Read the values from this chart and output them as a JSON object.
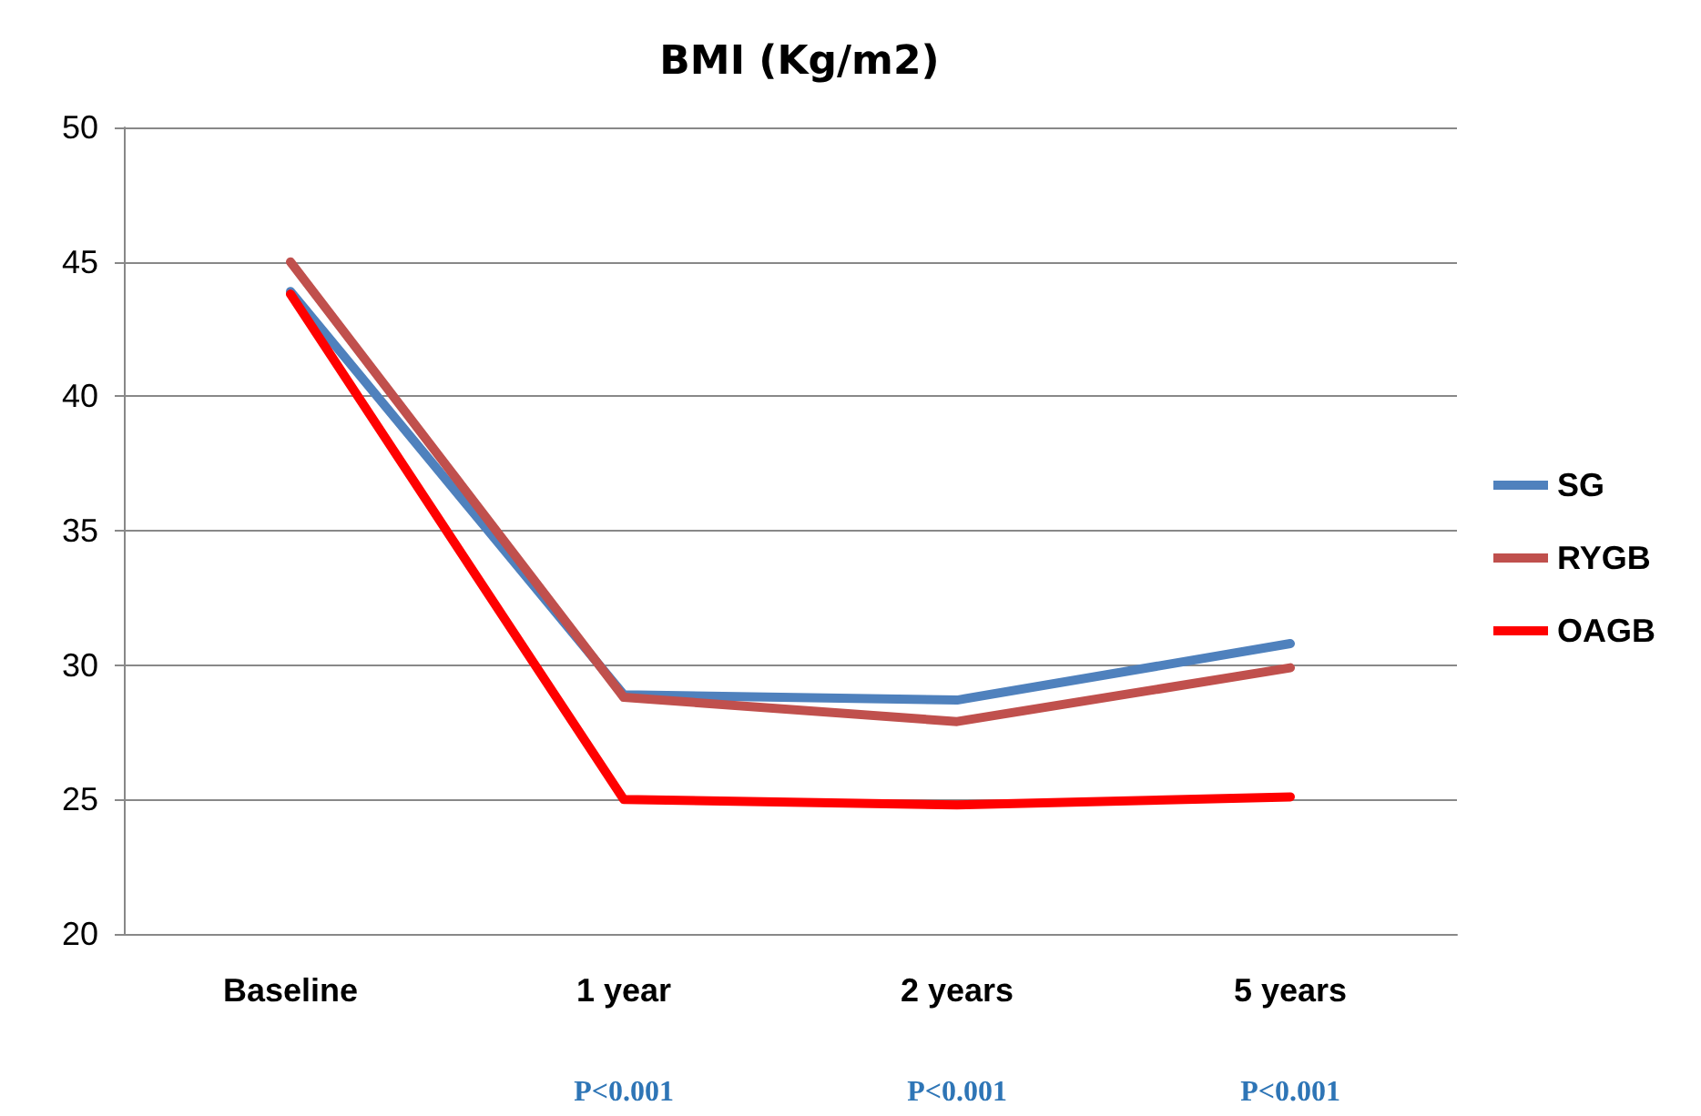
{
  "chart_data": {
    "type": "line",
    "title": "BMI (Kg/m2)",
    "categories": [
      "Baseline",
      "1 year",
      "2 years",
      "5 years"
    ],
    "series": [
      {
        "name": "SG",
        "color": "#4f81bd",
        "values": [
          43.9,
          28.9,
          28.7,
          30.8
        ]
      },
      {
        "name": "RYGB",
        "color": "#c0504d",
        "values": [
          45.0,
          28.8,
          27.9,
          29.9
        ]
      },
      {
        "name": "OAGB",
        "color": "#ff0000",
        "values": [
          43.8,
          25.0,
          24.8,
          25.1
        ]
      }
    ],
    "ylim": [
      20,
      50
    ],
    "yticks": [
      20,
      25,
      30,
      35,
      40,
      45,
      50
    ],
    "grid": "y",
    "legend": "right",
    "marker": "none",
    "line_style": "solid",
    "annotations": [
      "P<0.001",
      "P<0.001",
      "P<0.001"
    ]
  }
}
